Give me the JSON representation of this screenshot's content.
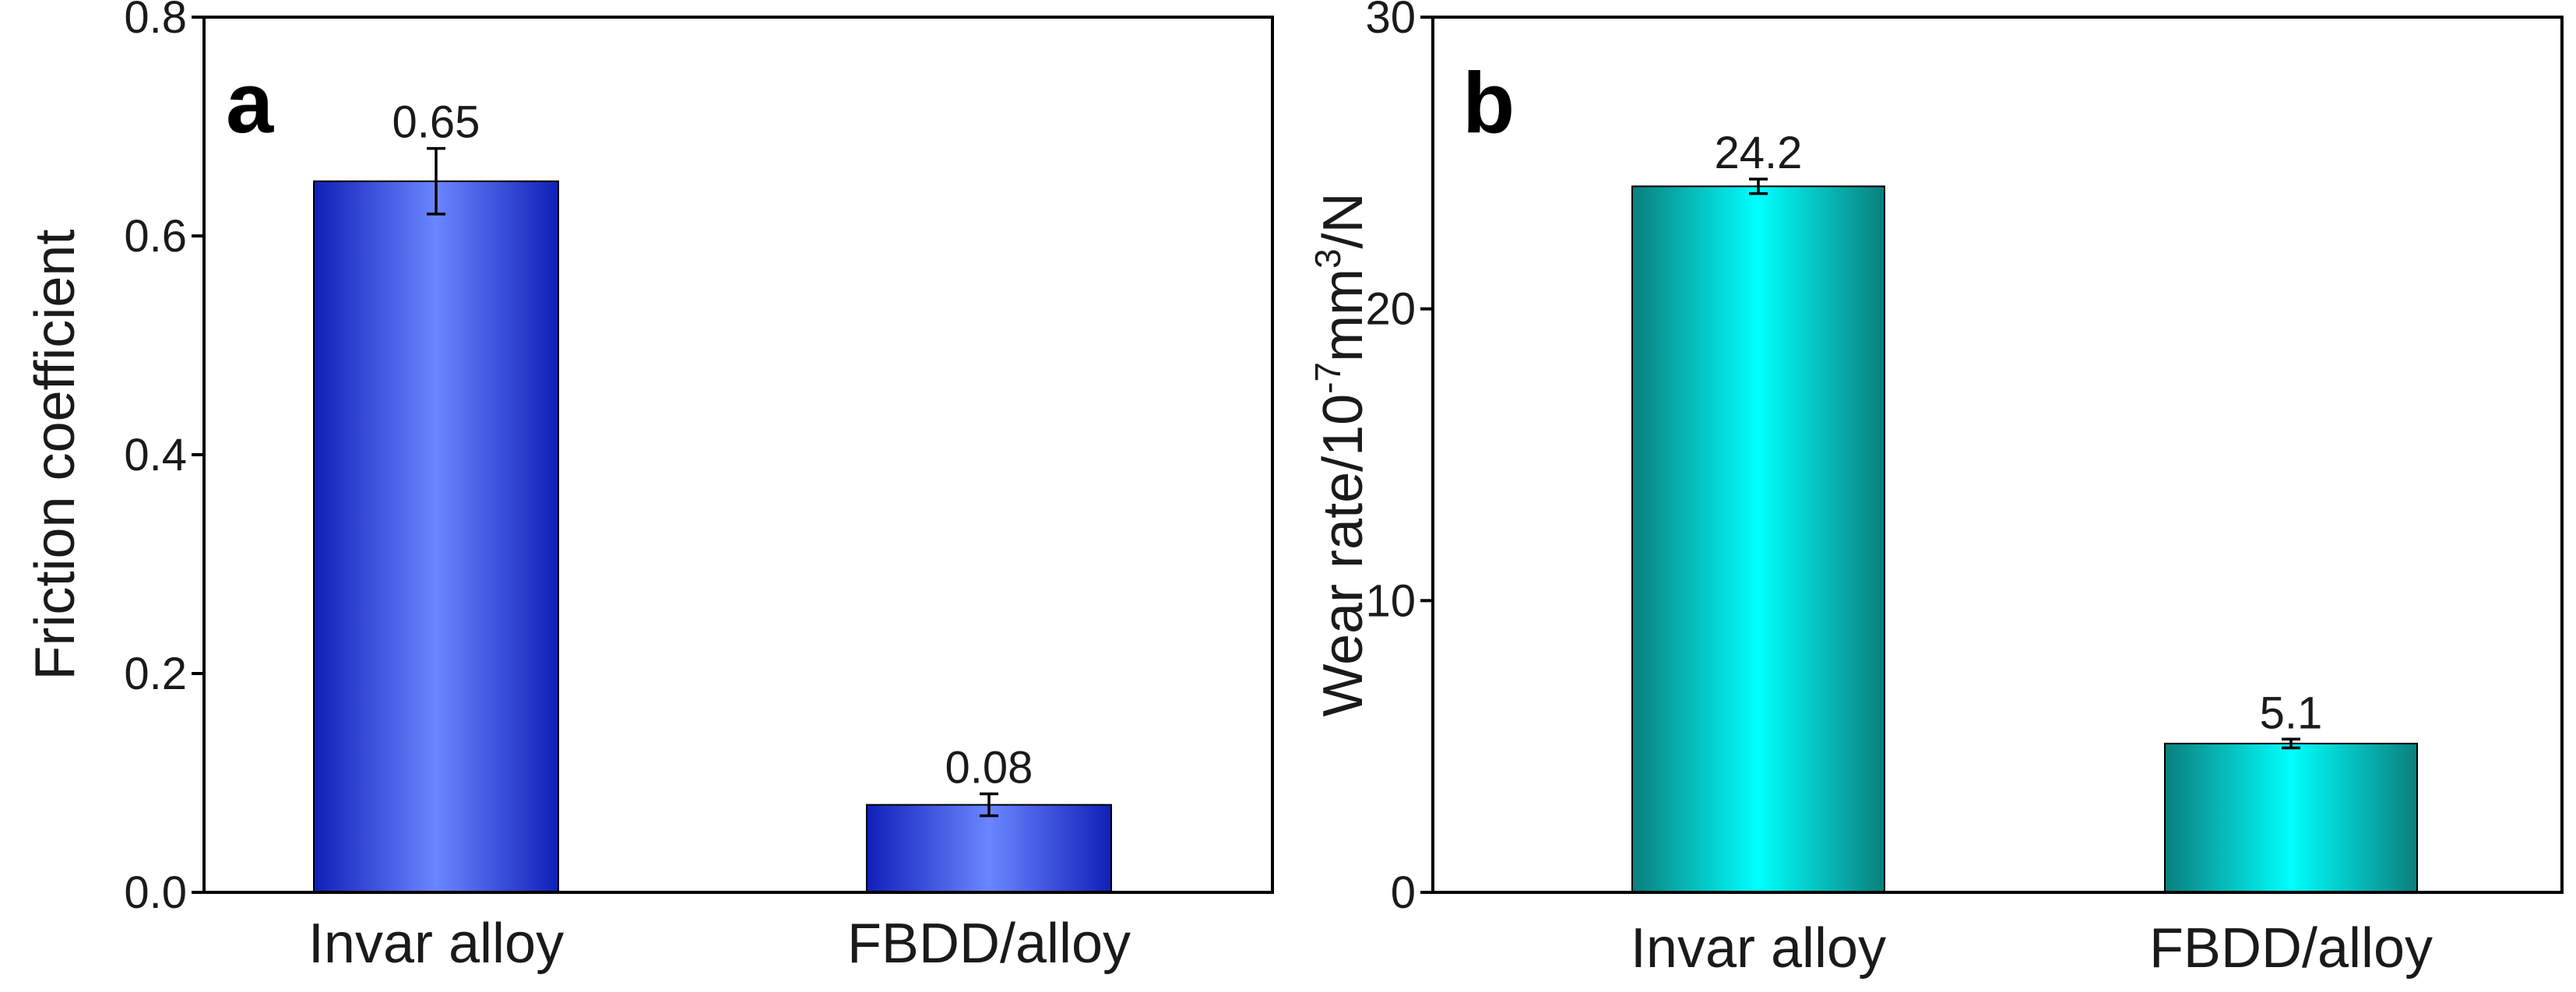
{
  "chart_data": [
    {
      "type": "bar",
      "panel": "a",
      "categories": [
        "Invar alloy",
        "FBDD/alloy"
      ],
      "values": [
        0.65,
        0.08
      ],
      "errors": [
        0.03,
        0.01
      ],
      "data_labels": [
        "0.65",
        "0.08"
      ],
      "ylabel": "Friction coefficient",
      "ylim": [
        0,
        0.8
      ],
      "yticks": [
        0.0,
        0.2,
        0.4,
        0.6,
        0.8
      ],
      "ytick_labels": [
        "0.0",
        "0.2",
        "0.4",
        "0.6",
        "0.8"
      ],
      "colors": {
        "edge": "#1020b8",
        "center": "#6a86ff"
      }
    },
    {
      "type": "bar",
      "panel": "b",
      "categories": [
        "Invar alloy",
        "FBDD/alloy"
      ],
      "values": [
        24.2,
        5.1
      ],
      "errors": [
        0.25,
        0.15
      ],
      "data_labels": [
        "24.2",
        "5.1"
      ],
      "ylabel_parts": {
        "pre": "Wear rate/10",
        "exp1": "-7",
        "mid": "mm",
        "exp2": "3",
        "post": "/N"
      },
      "ylim": [
        0,
        30
      ],
      "yticks": [
        0,
        10,
        20,
        30
      ],
      "ytick_labels": [
        "0",
        "10",
        "20",
        "30"
      ],
      "colors": {
        "edge": "#0a7f7c",
        "center": "#00ffff"
      }
    }
  ]
}
